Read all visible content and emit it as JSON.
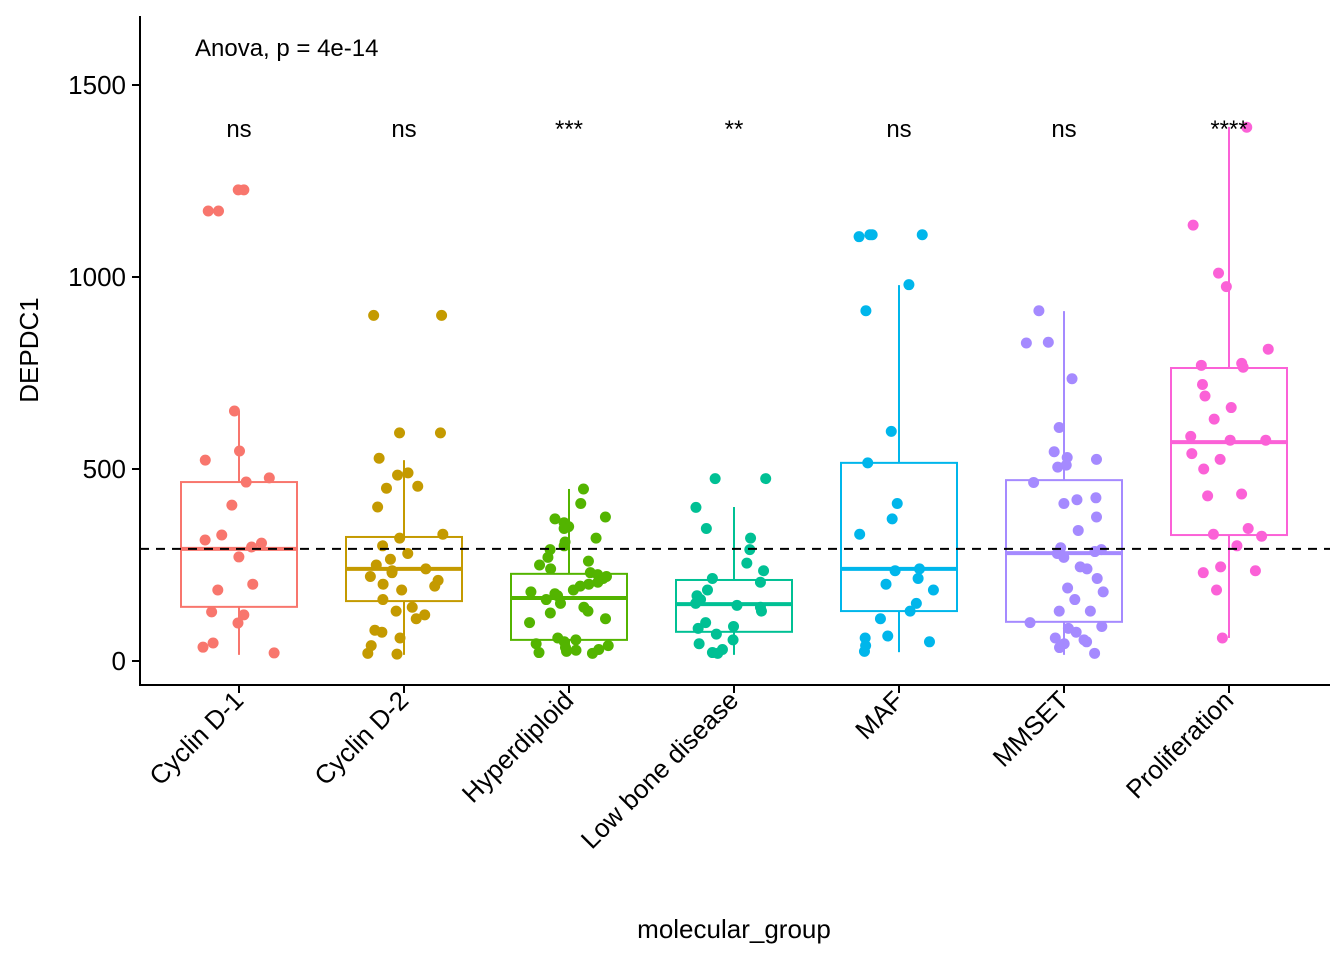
{
  "chart_data": {
    "type": "box",
    "xlabel": "molecular_group",
    "ylabel": "DEPDC1",
    "ylim": [
      -60,
      1680
    ],
    "yticks": [
      0,
      500,
      1000,
      1500
    ],
    "grid": false,
    "legend": "none",
    "annotation": "Anova, p = 4e-14",
    "reference_line": 292,
    "categories": [
      "Cyclin D-1",
      "Cyclin D-2",
      "Hyperdiploid",
      "Low bone disease",
      "MAF",
      "MMSET",
      "Proliferation"
    ],
    "significance": [
      "ns",
      "ns",
      "***",
      "**",
      "ns",
      "ns",
      "****"
    ],
    "colors": [
      "#F8766D",
      "#C49A00",
      "#53B400",
      "#00C094",
      "#00B6EB",
      "#A58AFF",
      "#FB61D7"
    ],
    "boxes": [
      {
        "q1": 141,
        "median": 292,
        "q3": 466,
        "whisker_low": 16,
        "whisker_high": 651
      },
      {
        "q1": 156,
        "median": 240,
        "q3": 323,
        "whisker_low": 16,
        "whisker_high": 523
      },
      {
        "q1": 55,
        "median": 164,
        "q3": 227,
        "whisker_low": 23,
        "whisker_high": 448
      },
      {
        "q1": 76,
        "median": 148,
        "q3": 211,
        "whisker_low": 16,
        "whisker_high": 401
      },
      {
        "q1": 130,
        "median": 240,
        "q3": 516,
        "whisker_low": 23,
        "whisker_high": 979
      },
      {
        "q1": 102,
        "median": 281,
        "q3": 471,
        "whisker_low": 16,
        "whisker_high": 911
      },
      {
        "q1": 328,
        "median": 570,
        "q3": 763,
        "whisker_low": 60,
        "whisker_high": 1391
      }
    ],
    "points": [
      [
        1227,
        1227,
        1172,
        1172,
        651,
        547,
        523,
        477,
        466,
        406,
        328,
        307,
        297,
        315,
        271,
        185,
        200,
        128,
        120,
        99,
        47,
        36,
        21
      ],
      [
        900,
        900,
        594,
        594,
        528,
        484,
        490,
        455,
        450,
        401,
        330,
        320,
        300,
        280,
        265,
        250,
        240,
        235,
        230,
        220,
        210,
        200,
        195,
        185,
        160,
        140,
        130,
        120,
        110,
        80,
        75,
        60,
        40,
        20,
        18
      ],
      [
        448,
        410,
        375,
        370,
        360,
        350,
        345,
        320,
        310,
        300,
        290,
        270,
        260,
        250,
        240,
        230,
        225,
        220,
        215,
        205,
        200,
        195,
        185,
        180,
        175,
        170,
        160,
        150,
        140,
        130,
        125,
        110,
        100,
        60,
        55,
        50,
        45,
        40,
        35,
        30,
        28,
        25,
        22,
        20
      ],
      [
        475,
        475,
        400,
        345,
        320,
        290,
        255,
        235,
        215,
        205,
        185,
        170,
        160,
        150,
        145,
        140,
        130,
        100,
        90,
        85,
        70,
        55,
        45,
        30,
        22,
        20
      ],
      [
        1110,
        1110,
        1110,
        1105,
        980,
        912,
        598,
        516,
        410,
        370,
        330,
        240,
        235,
        215,
        200,
        185,
        150,
        130,
        110,
        65,
        60,
        50,
        40,
        25
      ],
      [
        912,
        830,
        828,
        735,
        608,
        545,
        530,
        525,
        510,
        505,
        465,
        425,
        420,
        410,
        375,
        340,
        295,
        290,
        285,
        280,
        270,
        245,
        240,
        215,
        190,
        180,
        160,
        130,
        130,
        100,
        90,
        85,
        75,
        60,
        55,
        50,
        45,
        35,
        20
      ],
      [
        1390,
        1135,
        1010,
        975,
        812,
        775,
        770,
        765,
        720,
        690,
        660,
        630,
        585,
        575,
        575,
        540,
        525,
        500,
        435,
        430,
        345,
        330,
        325,
        300,
        245,
        235,
        230,
        185,
        60
      ]
    ]
  }
}
